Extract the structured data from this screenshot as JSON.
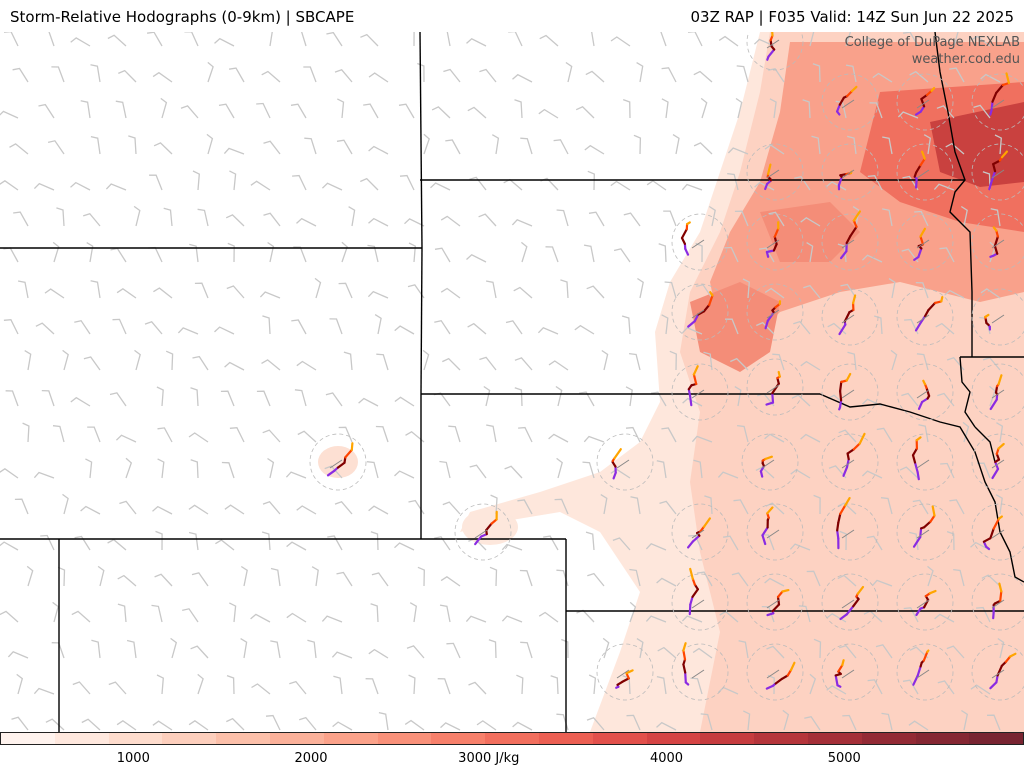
{
  "header": {
    "title_left": "Storm-Relative Hodographs (0-9km) | SBCAPE",
    "title_right": "03Z RAP | F035 Valid: 14Z Sun Jun 22 2025"
  },
  "credit": {
    "line1": "College of DuPage NEXLAB",
    "line2": "weather.cod.edu"
  },
  "colorbar": {
    "colors": [
      "#fff3ee",
      "#ffe8de",
      "#fedccd",
      "#fdcfbd",
      "#fcc0aa",
      "#fbb19a",
      "#fba28a",
      "#f9917a",
      "#f7806b",
      "#f26f5e",
      "#ec5f53",
      "#e2504b",
      "#d54444",
      "#c63c3f",
      "#b5353b",
      "#a42f38",
      "#932a35",
      "#852733",
      "#782431"
    ],
    "ticks": [
      {
        "value": 1000,
        "label": "1000"
      },
      {
        "value": 2000,
        "label": "2000"
      },
      {
        "value": 3000,
        "label": "3000 J/kg"
      },
      {
        "value": 4000,
        "label": "4000"
      },
      {
        "value": 5000,
        "label": "5000"
      }
    ],
    "vmin": 250,
    "vmax": 6000
  },
  "cape_field": [
    {
      "id": "plume-main",
      "level": 1
    },
    {
      "id": "plume-inner",
      "level": 2
    },
    {
      "id": "core-1",
      "level": 3
    },
    {
      "id": "core-2",
      "level": 3
    },
    {
      "id": "core-3",
      "level": 4
    }
  ],
  "hodograph_colors": {
    "low": "#8a2be2",
    "mid": "#800000",
    "upper": "#ff4500",
    "top": "#ffa500"
  },
  "icons": {
    "wind_barb": "wind-barb-icon",
    "calm": "calm-wind-circle-icon",
    "hodograph": "hodograph-icon"
  }
}
